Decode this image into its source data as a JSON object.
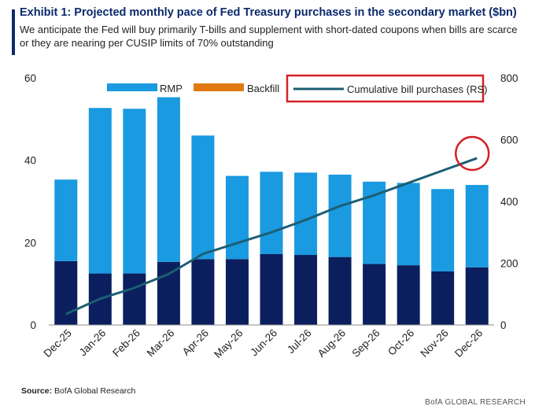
{
  "header": {
    "title": "Exhibit 1: Projected monthly pace of Fed Treasury purchases in the secondary market ($bn)",
    "subtitle": "We anticipate the Fed will buy primarily T-bills and supplement with short-dated coupons when bills are scarce or they are nearing per CUSIP limits of 70% outstanding"
  },
  "footer": {
    "source_label": "Source:",
    "source_text": "BofA Global Research",
    "brand": "BofA GLOBAL RESEARCH"
  },
  "colors": {
    "rmp": "#1a9ae0",
    "backfill": "#e07a10",
    "base": "#0b1f5e",
    "line": "#1b5e73",
    "highlight": "#d42027"
  },
  "chart_data": {
    "type": "bar",
    "categories": [
      "Dec-25",
      "Jan-26",
      "Feb-26",
      "Mar-26",
      "Apr-26",
      "May-26",
      "Jun-26",
      "Jul-26",
      "Aug-26",
      "Sep-26",
      "Oct-26",
      "Nov-26",
      "Dec-26"
    ],
    "series": [
      {
        "values": [
          15.5,
          12.5,
          12.5,
          15.3,
          16,
          16,
          17.2,
          17,
          16.5,
          14.8,
          14.5,
          13,
          14
        ]
      },
      {
        "name": "RMP",
        "values": [
          19.8,
          40.2,
          40,
          40,
          30,
          20.2,
          20,
          20,
          20,
          20,
          20,
          20,
          20
        ]
      },
      {
        "name": "Backfill",
        "values": [
          0,
          0,
          0,
          0,
          0,
          0,
          0,
          0,
          0,
          0,
          0,
          0,
          0
        ]
      },
      {
        "name": "Cumulative bill purchases (RS)",
        "axis": "right",
        "kind": "line",
        "values": [
          35,
          85,
          120,
          165,
          230,
          265,
          300,
          340,
          385,
          420,
          460,
          500,
          540
        ]
      }
    ],
    "ylim": [
      0,
      60
    ],
    "yticks": [
      0,
      20,
      40,
      60
    ],
    "y2lim": [
      0,
      800
    ],
    "y2ticks": [
      0,
      200,
      400,
      600,
      800
    ],
    "legend": "top",
    "grid": false,
    "stacked": true
  }
}
